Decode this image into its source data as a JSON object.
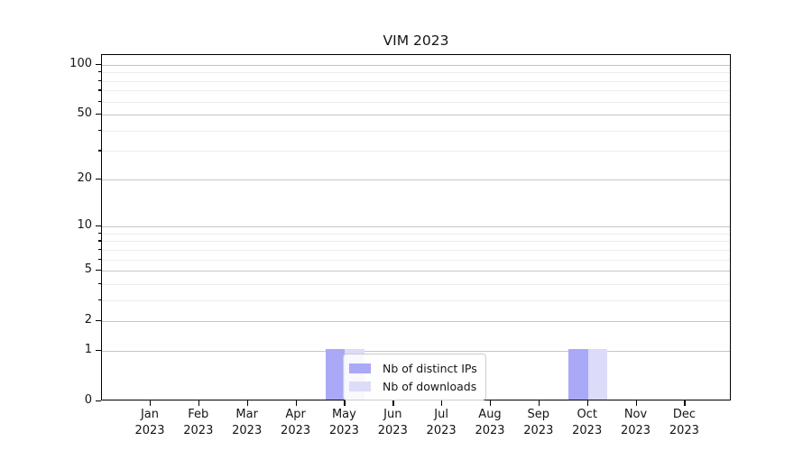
{
  "title": "VIM 2023",
  "chart_data": {
    "type": "bar",
    "title": "VIM 2023",
    "categories": [
      "Jan\n2023",
      "Feb\n2023",
      "Mar\n2023",
      "Apr\n2023",
      "May\n2023",
      "Jun\n2023",
      "Jul\n2023",
      "Aug\n2023",
      "Sep\n2023",
      "Oct\n2023",
      "Nov\n2023",
      "Dec\n2023"
    ],
    "series": [
      {
        "name": "Nb of distinct IPs",
        "color": "#a9a9f7",
        "values": [
          0,
          0,
          0,
          0,
          1,
          0,
          0,
          0,
          0,
          1,
          0,
          0
        ]
      },
      {
        "name": "Nb of downloads",
        "color": "#dcdbf8",
        "values": [
          0,
          0,
          0,
          0,
          1,
          0,
          0,
          0,
          0,
          1,
          0,
          0
        ]
      }
    ],
    "xlabel": "",
    "ylabel": "",
    "yscale": "log1p",
    "ylim": [
      0,
      114
    ],
    "y_major_ticks": [
      0,
      1,
      2,
      5,
      10,
      20,
      50,
      100
    ],
    "y_minor_ticks": [
      3,
      4,
      6,
      7,
      8,
      9,
      30,
      40,
      60,
      70,
      80,
      90
    ],
    "grid": "horizontal",
    "legend": {
      "position": "bottom-center",
      "entries": [
        "Nb of distinct IPs",
        "Nb of downloads"
      ]
    },
    "colors": {
      "axis": "#000000",
      "grid_major": "#c6c6c6",
      "grid_minor": "#ececec",
      "legend_border": "#cccccc",
      "text": "#151515"
    }
  }
}
